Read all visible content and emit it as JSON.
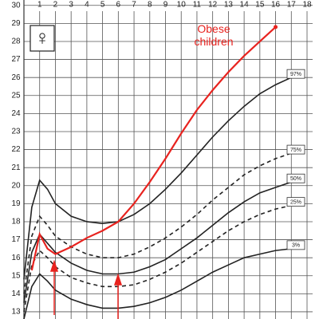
{
  "chart_data": {
    "type": "line",
    "symbol": "♀",
    "x": [
      0,
      0.5,
      1,
      1.5,
      2,
      3,
      4,
      5,
      6,
      7,
      8,
      9,
      10,
      11,
      12,
      13,
      14,
      15,
      16,
      17
    ],
    "series": [
      {
        "name": "97%",
        "color": "#222222",
        "dashed": false,
        "values": [
          14.8,
          18.8,
          20.3,
          19.8,
          19.0,
          18.3,
          18.0,
          17.9,
          18.0,
          18.4,
          19.0,
          19.8,
          20.7,
          21.7,
          22.7,
          23.6,
          24.4,
          25.1,
          25.6,
          26.0
        ]
      },
      {
        "name": "75%",
        "color": "#222222",
        "dashed": true,
        "values": [
          14.0,
          17.2,
          18.3,
          17.8,
          17.2,
          16.6,
          16.2,
          16.0,
          16.0,
          16.2,
          16.6,
          17.1,
          17.7,
          18.4,
          19.2,
          19.9,
          20.6,
          21.1,
          21.5,
          21.8
        ]
      },
      {
        "name": "50%",
        "color": "#222222",
        "dashed": false,
        "values": [
          13.5,
          16.3,
          17.3,
          16.8,
          16.3,
          15.7,
          15.3,
          15.1,
          15.1,
          15.2,
          15.5,
          15.9,
          16.5,
          17.1,
          17.8,
          18.5,
          19.1,
          19.6,
          19.9,
          20.2
        ]
      },
      {
        "name": "25%",
        "color": "#222222",
        "dashed": true,
        "values": [
          13.0,
          15.6,
          16.4,
          16.0,
          15.5,
          14.9,
          14.6,
          14.4,
          14.4,
          14.5,
          14.8,
          15.2,
          15.7,
          16.3,
          16.9,
          17.5,
          18.0,
          18.4,
          18.7,
          18.9
        ]
      },
      {
        "name": "3%",
        "color": "#222222",
        "dashed": false,
        "values": [
          12.6,
          14.4,
          15.1,
          14.7,
          14.2,
          13.7,
          13.4,
          13.2,
          13.2,
          13.3,
          13.5,
          13.8,
          14.2,
          14.7,
          15.2,
          15.6,
          16.0,
          16.2,
          16.4,
          16.5
        ]
      },
      {
        "name": "Obese children",
        "color": "#e8231f",
        "dashed": false,
        "values": [
          null,
          15.3,
          17.3,
          16.5,
          16.2,
          16.6,
          17.1,
          17.5,
          18.0,
          19.0,
          20.2,
          21.5,
          22.9,
          24.2,
          25.3,
          26.3,
          27.2,
          28.0,
          28.8,
          null
        ]
      }
    ],
    "xlim": [
      0,
      18
    ],
    "xticks": [
      1,
      2,
      3,
      4,
      5,
      6,
      7,
      8,
      9,
      10,
      11,
      12,
      13,
      14,
      15,
      16,
      17,
      18
    ],
    "ylim": [
      12.6,
      30.3
    ],
    "yticks": [
      13,
      14,
      15,
      16,
      17,
      18,
      19,
      20,
      21,
      22,
      23,
      24,
      25,
      26,
      27,
      28,
      29,
      30
    ],
    "grid": true
  }
}
